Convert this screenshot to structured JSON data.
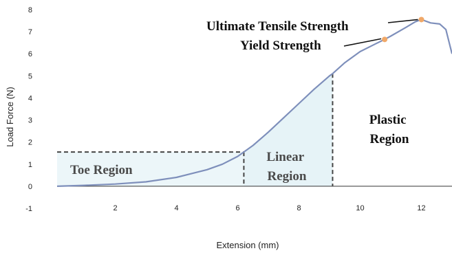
{
  "chart_data": {
    "type": "line",
    "title": "",
    "xlabel": "Extension (mm)",
    "ylabel": "Load Force (N)",
    "xlim": [
      0.1,
      13
    ],
    "ylim": [
      -1,
      8
    ],
    "x_ticks": [
      2,
      4,
      6,
      8,
      10,
      12
    ],
    "y_ticks": [
      -1,
      0,
      1,
      2,
      3,
      4,
      5,
      6,
      7,
      8
    ],
    "grid": false,
    "series": [
      {
        "x": [
          0.1,
          1,
          2,
          3,
          4,
          5,
          5.5,
          6,
          6.2,
          6.5,
          7,
          7.5,
          8,
          8.5,
          9,
          9.1,
          9.5,
          10,
          10.5,
          10.8,
          11,
          11.5,
          11.8,
          12,
          12.3,
          12.6,
          12.8,
          13
        ],
        "y": [
          0,
          0.04,
          0.1,
          0.2,
          0.4,
          0.75,
          1.0,
          1.35,
          1.55,
          1.85,
          2.45,
          3.1,
          3.75,
          4.4,
          5.0,
          5.1,
          5.6,
          6.1,
          6.45,
          6.65,
          6.8,
          7.2,
          7.45,
          7.55,
          7.4,
          7.35,
          7.1,
          6.0
        ]
      }
    ],
    "regions": [
      {
        "label": "Toe Region",
        "x_end": 6.2,
        "y_at_end": 1.55
      },
      {
        "label": "Linear Region",
        "x_start": 6.2,
        "x_end": 9.1,
        "y_at_end": 5.1
      },
      {
        "label": "Plastic Region"
      }
    ],
    "annotations": [
      {
        "label": "Yield Strength",
        "x": 10.8,
        "y": 6.65
      },
      {
        "label": "Ultimate Tensile Strength",
        "x": 12.0,
        "y": 7.55
      }
    ],
    "colors": {
      "line": "#7e8fbb",
      "fill": "#e6f3f7",
      "point": "#f0a868",
      "dashed": "#444444"
    }
  }
}
